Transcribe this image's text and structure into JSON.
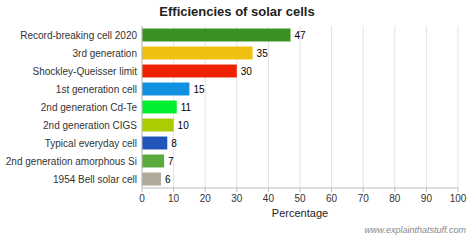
{
  "chart_data": {
    "type": "bar",
    "orientation": "horizontal",
    "title": "Efficiencies of solar cells",
    "categories": [
      "1954 Bell solar cell",
      "2nd generation amorphous Si",
      "Typical everyday cell",
      "2nd generation CIGS",
      "2nd generation Cd-Te",
      "1st generation cell",
      "Shockley-Queisser limit",
      "3rd generation",
      "Record-breaking cell 2020"
    ],
    "values": [
      6,
      7,
      8,
      10,
      11,
      15,
      30,
      35,
      47
    ],
    "colors": [
      "#b0a898",
      "#5aaa40",
      "#2255bb",
      "#aacc00",
      "#00ee30",
      "#1090e0",
      "#ee2200",
      "#f0c010",
      "#3a9020"
    ],
    "xlabel": "Percentage",
    "xlim": [
      0,
      100
    ],
    "xticks": [
      0,
      10,
      20,
      30,
      40,
      50,
      60,
      70,
      80,
      90,
      100
    ],
    "grid": true,
    "data_labels": true,
    "annotations": [
      "www.explainthatstuff.com"
    ]
  }
}
